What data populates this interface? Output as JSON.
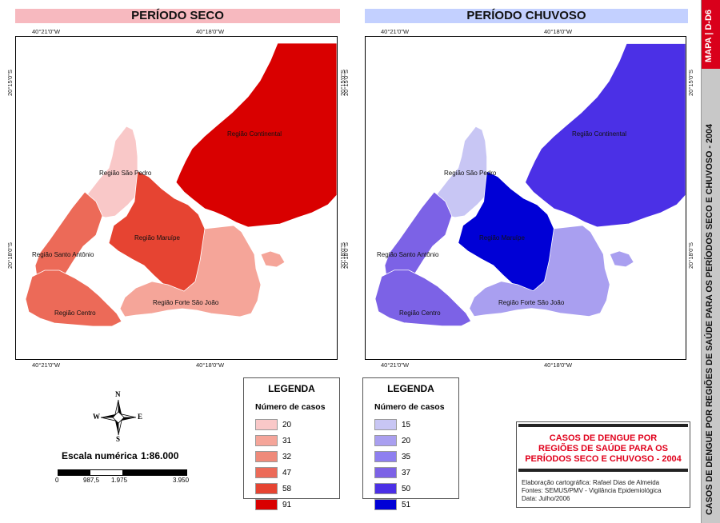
{
  "dry": {
    "title": "PERÍODO SECO",
    "banner_color": "#f7b9bf",
    "region_colors": {
      "continental": "#d90000",
      "sao_pedro": "#f9c8c8",
      "santo_antonio": "#ec6a58",
      "maruipe": "#e64432",
      "centro": "#ec6a58",
      "forte_sao_joao": "#f5a599"
    }
  },
  "wet": {
    "title": "PERÍODO CHUVOSO",
    "banner_color": "#c3d0ff",
    "region_colors": {
      "continental": "#4b30e6",
      "sao_pedro": "#c8c6f4",
      "santo_antonio": "#7c62e6",
      "maruipe": "#0000d6",
      "centro": "#7c62e6",
      "forte_sao_joao": "#a99ff0"
    }
  },
  "regions": {
    "continental": "Região Continental",
    "sao_pedro": "Região São Pedro",
    "santo_antonio": "Região Santo Antônio",
    "maruipe": "Região Maruípe",
    "centro": "Região Centro",
    "forte_sao_joao": "Região Forte São João"
  },
  "coords": {
    "lon_w": "40°21'0\"W",
    "lon_e": "40°18'0\"W",
    "lat_n": "20°15'0\"S",
    "lat_s": "20°18'0\"S"
  },
  "legend_dry": {
    "title": "LEGENDA",
    "subtitle": "Número de casos",
    "items": [
      {
        "label": "20",
        "color": "#f9c8c8"
      },
      {
        "label": "31",
        "color": "#f5a599"
      },
      {
        "label": "32",
        "color": "#ef8a7a"
      },
      {
        "label": "47",
        "color": "#ec6a58"
      },
      {
        "label": "58",
        "color": "#e64432"
      },
      {
        "label": "91",
        "color": "#d90000"
      }
    ]
  },
  "legend_wet": {
    "title": "LEGENDA",
    "subtitle": "Número de casos",
    "items": [
      {
        "label": "15",
        "color": "#c8c6f4"
      },
      {
        "label": "20",
        "color": "#a99ff0"
      },
      {
        "label": "35",
        "color": "#8e7ff0"
      },
      {
        "label": "37",
        "color": "#7c62e6"
      },
      {
        "label": "50",
        "color": "#4b30e6"
      },
      {
        "label": "51",
        "color": "#0000d6"
      }
    ]
  },
  "compass": {
    "n": "N",
    "s": "S",
    "e": "E",
    "w": "W"
  },
  "scale": {
    "label": "Escala numérica",
    "value": "1:86.000",
    "ticks": [
      "0",
      "987,5",
      "1.975",
      "3.950"
    ]
  },
  "title_box": {
    "line1": "CASOS DE DENGUE POR",
    "line2": "REGIÕES DE SAÚDE PARA OS",
    "line3": "PERÍODOS SECO E CHUVOSO - 2004",
    "credit": "Elaboração cartográfica: Rafael Dias de Almeida",
    "sources": "Fontes: SEMUS/PMV - Vigilância Epidemiológica",
    "date": "Data: Julho/2006"
  },
  "side": {
    "map_id": "MAPA | D-D6",
    "title": "CASOS DE DENGUE POR REGIÕES DE SAÚDE PARA OS PERÍODOS SECO E CHUVOSO - 2004"
  }
}
